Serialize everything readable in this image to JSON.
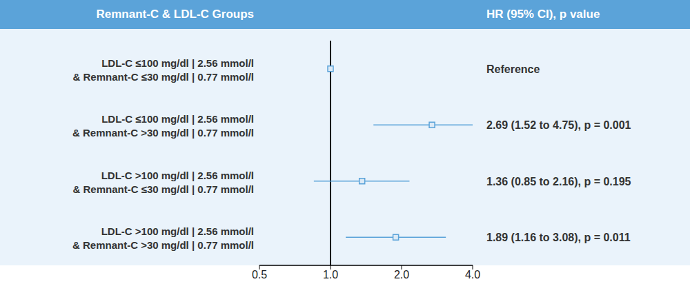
{
  "chart_data": {
    "type": "forest",
    "y_label": "Remnant-C & LDL-C Groups",
    "value_header": "HR (95% CI), p value",
    "categories": [
      [
        "LDL-C ≤100 mg/dl | 2.56 mmol/l",
        "& Remnant-C ≤30 mg/dl | 0.77 mmol/l"
      ],
      [
        "LDL-C ≤100 mg/dl | 2.56 mmol/l",
        "& Remnant-C >30 mg/dl | 0.77 mmol/l"
      ],
      [
        "LDL-C >100 mg/dl | 2.56 mmol/l",
        "& Remnant-C ≤30 mg/dl | 0.77 mmol/l"
      ],
      [
        "LDL-C >100 mg/dl | 2.56 mmol/l",
        "& Remnant-C >30 mg/dl | 0.77 mmol/l"
      ]
    ],
    "values": [
      1,
      2.69,
      1.36,
      1.89
    ],
    "ci_lower": [
      null,
      1.52,
      0.85,
      1.16
    ],
    "ci_upper": [
      null,
      4.75,
      2.16,
      3.08
    ],
    "value_labels": [
      "Reference",
      "2.69 (1.52 to 4.75), p = 0.001",
      "1.36 (0.85 to 2.16), p = 0.195",
      "1.89 (1.16 to 3.08), p = 0.011"
    ],
    "xlim": [
      0.5,
      4
    ],
    "xticks": [
      0.5,
      {
        "value": 1,
        "label": "1.0"
      },
      {
        "value": 2,
        "label": "2.0"
      },
      {
        "value": 4,
        "label": "4.0"
      }
    ],
    "log": "x",
    "color": "#5ba3d9",
    "marker": "square"
  }
}
